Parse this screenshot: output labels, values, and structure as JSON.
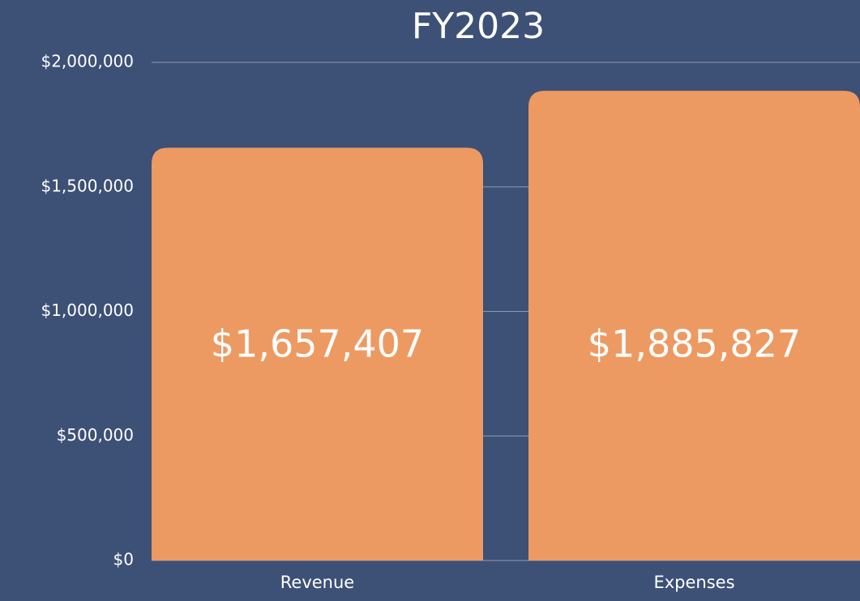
{
  "chart_data": {
    "type": "bar",
    "title": "FY2023",
    "categories": [
      "Revenue",
      "Expenses"
    ],
    "values": [
      1657407,
      1885827
    ],
    "value_labels": [
      "$1,657,407",
      "$1,885,827"
    ],
    "color": "#ec9a62",
    "ylim": [
      0,
      2000000
    ],
    "yticks": [
      {
        "value": 0,
        "label": "$0"
      },
      {
        "value": 500000,
        "label": "$500,000"
      },
      {
        "value": 1000000,
        "label": "$1,000,000"
      },
      {
        "value": 1500000,
        "label": "$1,500,000"
      },
      {
        "value": 2000000,
        "label": "$2,000,000"
      }
    ],
    "grid": true
  }
}
